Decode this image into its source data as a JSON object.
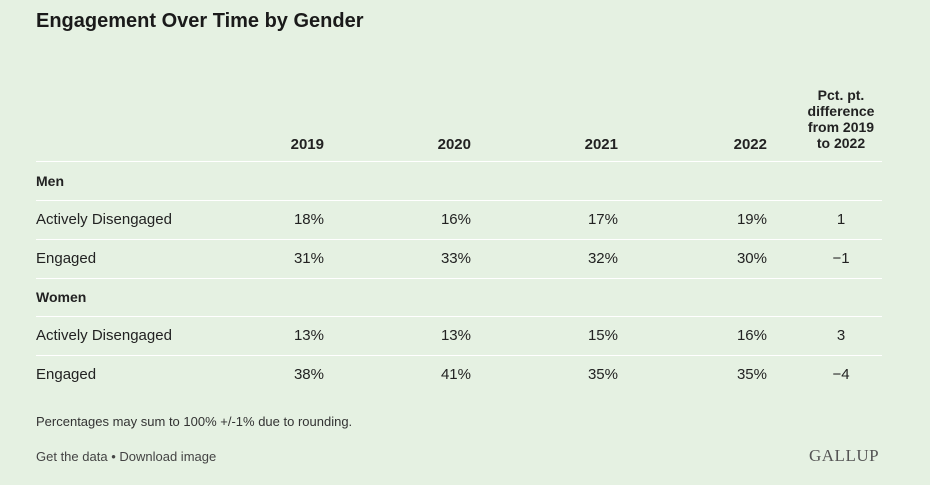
{
  "chart_data": {
    "type": "table",
    "title": "Engagement Over Time by Gender",
    "columns": [
      "2019",
      "2020",
      "2021",
      "2022",
      "Pct. pt. difference from 2019 to 2022"
    ],
    "diff_header_lines": [
      "Pct. pt.",
      "difference",
      "from 2019",
      "to 2022"
    ],
    "groups": [
      {
        "name": "Men",
        "rows": [
          {
            "label": "Actively Disengaged",
            "values": [
              "18%",
              "16%",
              "17%",
              "19%"
            ],
            "diff": "1"
          },
          {
            "label": "Engaged",
            "values": [
              "31%",
              "33%",
              "32%",
              "30%"
            ],
            "diff": "−1"
          }
        ]
      },
      {
        "name": "Women",
        "rows": [
          {
            "label": "Actively Disengaged",
            "values": [
              "13%",
              "13%",
              "15%",
              "16%"
            ],
            "diff": "3"
          },
          {
            "label": "Engaged",
            "values": [
              "38%",
              "41%",
              "35%",
              "35%"
            ],
            "diff": "−4"
          }
        ]
      }
    ],
    "note": "Percentages may sum to 100% +/-1% due to rounding."
  },
  "footer": {
    "get_data": "Get the data",
    "separator": "•",
    "download": "Download image",
    "logo": "GALLUP"
  },
  "colors": {
    "background": "#e5f1e2",
    "divider": "#ffffff"
  }
}
